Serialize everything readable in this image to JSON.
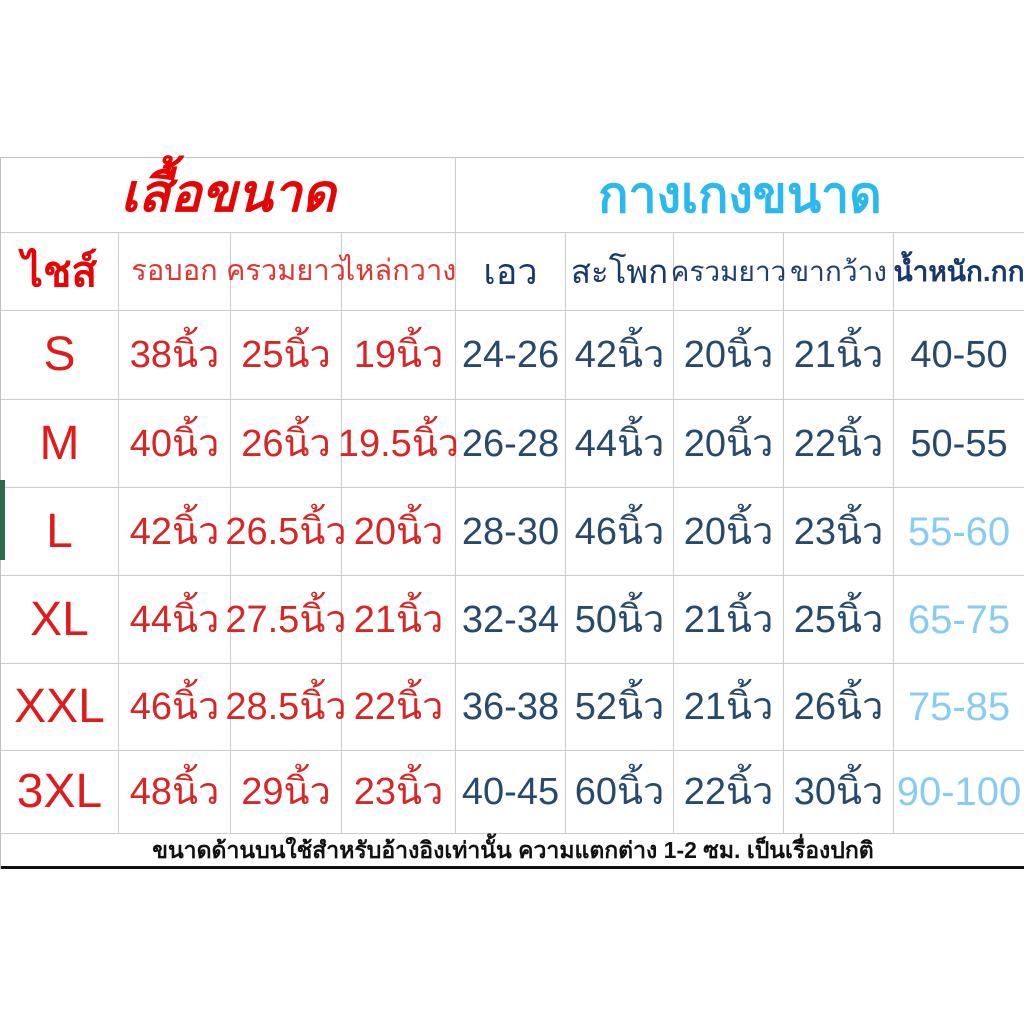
{
  "colors": {
    "shirt_red": "#e60505",
    "pants_light_blue": "#29b8ef",
    "data_navy": "#27496d",
    "weight_highlight_blue": "#89ccf3",
    "grid_line": "#cccccc",
    "footer_border": "#101010",
    "edge_artifact_green": "#2e6b4c"
  },
  "chart_data": {
    "type": "table",
    "section_headers": [
      {
        "label": "เสื้อขนาด",
        "span": 4,
        "color": "#e60505"
      },
      {
        "label": "กางเกงขนาด",
        "span": 5,
        "color": "#29b8ef"
      }
    ],
    "columns": [
      "ไชส์",
      "รอบอก",
      "ครวมยาว",
      "ไหล่กวาง",
      "เอว",
      "สะโพก",
      "ครวมยาว",
      "ขากว้าง",
      "น้ำหนัก.กก"
    ],
    "rows": [
      {
        "size": "S",
        "values": [
          "38นิ้ว",
          "25นิ้ว",
          "19นิ้ว",
          "24-26",
          "42นิ้ว",
          "20นิ้ว",
          "21นิ้ว",
          "40-50"
        ],
        "weight_highlight": false
      },
      {
        "size": "M",
        "values": [
          "40นิ้ว",
          "26นิ้ว",
          "19.5นิ้ว",
          "26-28",
          "44นิ้ว",
          "20นิ้ว",
          "22นิ้ว",
          "50-55"
        ],
        "weight_highlight": false
      },
      {
        "size": "L",
        "values": [
          "42นิ้ว",
          "26.5นิ้ว",
          "20นิ้ว",
          "28-30",
          "46นิ้ว",
          "20นิ้ว",
          "23นิ้ว",
          "55-60"
        ],
        "weight_highlight": true
      },
      {
        "size": "XL",
        "values": [
          "44นิ้ว",
          "27.5นิ้ว",
          "21นิ้ว",
          "32-34",
          "50นิ้ว",
          "21นิ้ว",
          "25นิ้ว",
          "65-75"
        ],
        "weight_highlight": true
      },
      {
        "size": "XXL",
        "values": [
          "46นิ้ว",
          "28.5นิ้ว",
          "22นิ้ว",
          "36-38",
          "52นิ้ว",
          "21นิ้ว",
          "26นิ้ว",
          "75-85"
        ],
        "weight_highlight": true
      },
      {
        "size": "3XL",
        "values": [
          "48นิ้ว",
          "29นิ้ว",
          "23นิ้ว",
          "40-45",
          "60นิ้ว",
          "22นิ้ว",
          "30นิ้ว",
          "90-100"
        ],
        "weight_highlight": true
      }
    ],
    "footer_note": "ขนาดด้านบนใช้สำหรับอ้างอิงเท่านั้น ความแตกต่าง 1-2 ซม. เป็นเรื่องปกติ"
  }
}
